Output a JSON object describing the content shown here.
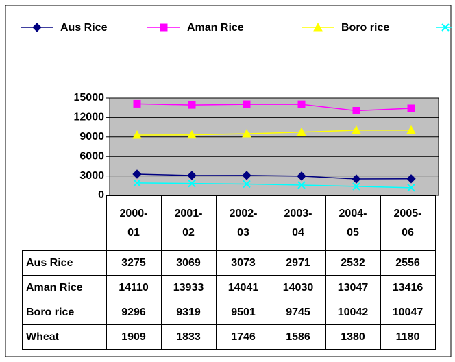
{
  "chart_data": {
    "type": "line",
    "categories": [
      "2000-01",
      "2001-02",
      "2002-03",
      "2003-04",
      "2004-05",
      "2005-06"
    ],
    "series": [
      {
        "name": "Aus Rice",
        "color": "#000080",
        "marker": "diamond",
        "values": [
          3275,
          3069,
          3073,
          2971,
          2532,
          2556
        ]
      },
      {
        "name": "Aman Rice",
        "color": "#ff00ff",
        "marker": "square",
        "values": [
          14110,
          13933,
          14041,
          14030,
          13047,
          13416
        ]
      },
      {
        "name": "Boro rice",
        "color": "#ffff00",
        "marker": "triangle",
        "values": [
          9296,
          9319,
          9501,
          9745,
          10042,
          10047
        ]
      },
      {
        "name": "Wheat",
        "color": "#00ffff",
        "marker": "x",
        "values": [
          1909,
          1833,
          1746,
          1586,
          1380,
          1180
        ]
      }
    ],
    "ylim": [
      0,
      15000
    ],
    "yticks": [
      0,
      3000,
      6000,
      9000,
      12000,
      15000
    ],
    "grid": true,
    "plot_background": "#c0c0c0"
  }
}
